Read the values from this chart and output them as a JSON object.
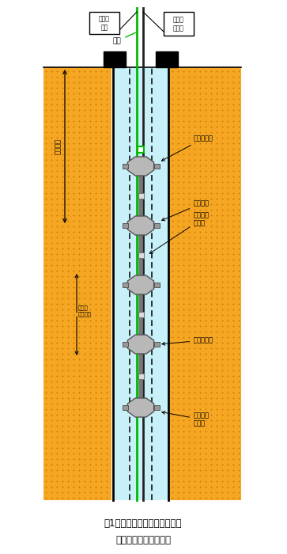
{
  "fig_width": 3.63,
  "fig_height": 7.0,
  "dpi": 100,
  "bg_color": "#ffffff",
  "ground_color": "#f5a623",
  "ground_dot_color": "#cc7700",
  "borehole_color": "#c8f0f8",
  "wall_color": "#000000",
  "packer_color": "#b8b8b8",
  "packer_stroke": "#555555",
  "pipe_green": "#00bb00",
  "pipe_dark": "#222222",
  "title_text": "図1　区間過断構造の観測井と\n　パッカー付きゾンデ",
  "label_saishui_pump": "採水ポンプ",
  "label_packer": "パッカー",
  "label_muko": "無孔部・\n過水材",
  "label_pressure_sensor": "圧力センサ",
  "label_perforated": "有孔ケー\nシング",
  "label_pressure_gauge": "圧力表\n示器",
  "label_compressor": "コンプ\nレッサ",
  "label_saishui": "採水",
  "label_depth": "試験深度",
  "label_interval": "試験区\n間長１ｍ"
}
